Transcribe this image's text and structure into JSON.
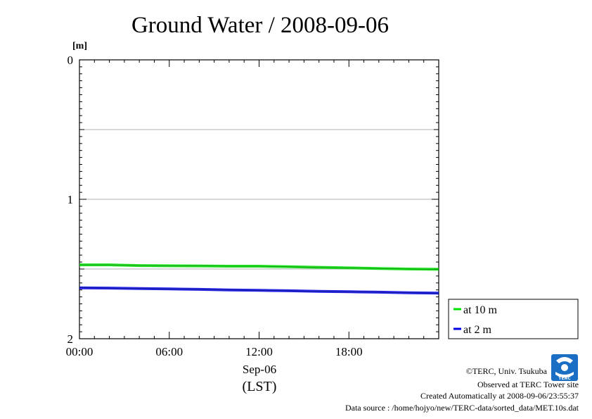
{
  "chart_data": {
    "type": "line",
    "title": "Ground Water / 2008-09-06",
    "y_unit": "[m]",
    "x_date_label": "Sep-06",
    "x_time_zone_label": "(LST)",
    "x_tick_labels": [
      "00:00",
      "06:00",
      "12:00",
      "18:00"
    ],
    "x_ticks_hours": [
      0,
      6,
      12,
      18
    ],
    "xlim_hours": [
      0,
      24
    ],
    "y_tick_labels": [
      "0",
      "1",
      "2"
    ],
    "y_ticks": [
      0,
      1,
      2
    ],
    "ylim": [
      0,
      2
    ],
    "y_inverted": true,
    "grid": true,
    "legend_position": "right-bottom outside",
    "series": [
      {
        "name": "at 10 m",
        "color": "#00e000",
        "x_hours": [
          0,
          2,
          4,
          6,
          8,
          10,
          12,
          14,
          16,
          18,
          20,
          22,
          24
        ],
        "values": [
          1.47,
          1.47,
          1.475,
          1.477,
          1.478,
          1.48,
          1.48,
          1.484,
          1.488,
          1.492,
          1.496,
          1.5,
          1.502
        ]
      },
      {
        "name": "at 2 m",
        "color": "#0000e0",
        "x_hours": [
          0,
          2,
          4,
          6,
          8,
          10,
          12,
          14,
          16,
          18,
          20,
          22,
          24
        ],
        "values": [
          1.635,
          1.637,
          1.64,
          1.643,
          1.646,
          1.65,
          1.653,
          1.656,
          1.66,
          1.663,
          1.666,
          1.67,
          1.673
        ]
      }
    ]
  },
  "footer": {
    "copyright": "©TERC, Univ. Tsukuba",
    "site": "Observed at TERC Tower site",
    "created": "Created Automatically at 2008-09-06/23:55:37",
    "source": "Data source : /home/hojyo/new/TERC-data/sorted_data/MET.10s.dat",
    "logo_text": "TERC"
  }
}
